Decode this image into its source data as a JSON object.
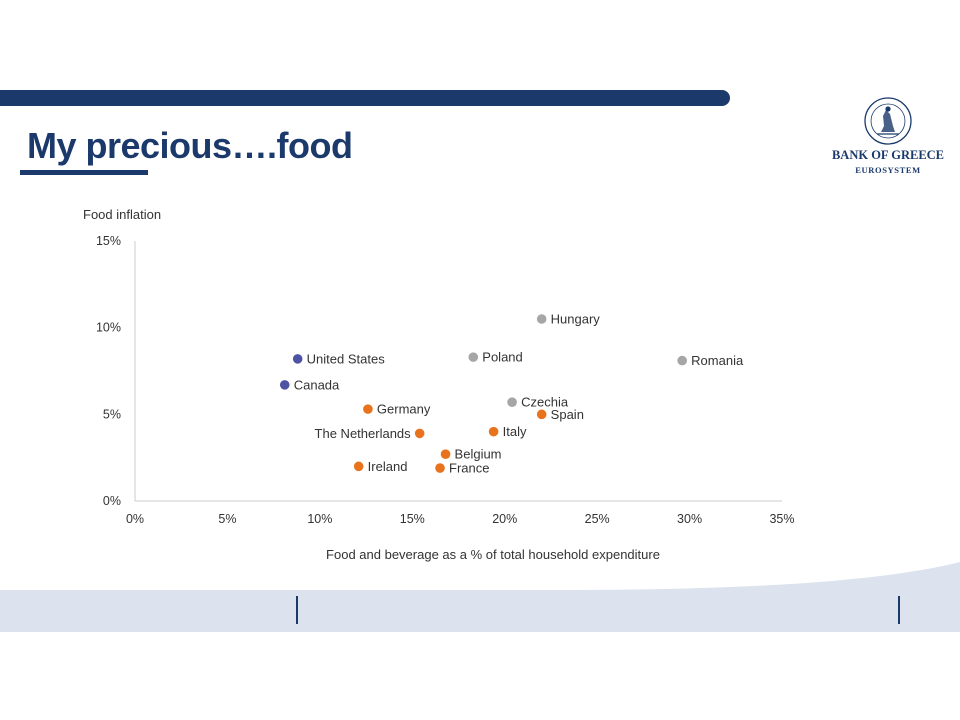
{
  "header": {
    "title": "My precious….food"
  },
  "logo": {
    "name": "BANK OF GREECE",
    "subtitle": "EUROSYSTEM"
  },
  "colors": {
    "brand": "#1b3a6b",
    "north_america": "#4e52a3",
    "euro_area": "#e8731c",
    "other": "#a6a6a6"
  },
  "chart_data": {
    "type": "scatter",
    "title": "",
    "ylabel": "Food inflation",
    "xlabel": "Food and beverage as a % of total household expenditure",
    "xlim": [
      0,
      35
    ],
    "ylim": [
      0,
      15
    ],
    "x_ticks": [
      {
        "value": 0,
        "label": "0%"
      },
      {
        "value": 5,
        "label": "5%"
      },
      {
        "value": 10,
        "label": "10%"
      },
      {
        "value": 15,
        "label": "15%"
      },
      {
        "value": 20,
        "label": "20%"
      },
      {
        "value": 25,
        "label": "25%"
      },
      {
        "value": 30,
        "label": "30%"
      },
      {
        "value": 35,
        "label": "35%"
      }
    ],
    "y_ticks": [
      {
        "value": 0,
        "label": "0%"
      },
      {
        "value": 5,
        "label": "5%"
      },
      {
        "value": 10,
        "label": "10%"
      },
      {
        "value": 15,
        "label": "15%"
      }
    ],
    "grid": false,
    "legend": "none",
    "points": [
      {
        "label": "United States",
        "x": 8.8,
        "y": 8.2,
        "group": "north_america"
      },
      {
        "label": "Canada",
        "x": 8.1,
        "y": 6.7,
        "group": "north_america"
      },
      {
        "label": "Germany",
        "x": 12.6,
        "y": 5.3,
        "group": "euro_area"
      },
      {
        "label": "The Netherlands",
        "x": 15.4,
        "y": 3.9,
        "group": "euro_area"
      },
      {
        "label": "Ireland",
        "x": 12.1,
        "y": 2.0,
        "group": "euro_area"
      },
      {
        "label": "Belgium",
        "x": 16.8,
        "y": 2.7,
        "group": "euro_area"
      },
      {
        "label": "France",
        "x": 16.5,
        "y": 1.9,
        "group": "euro_area"
      },
      {
        "label": "Italy",
        "x": 19.4,
        "y": 4.0,
        "group": "euro_area"
      },
      {
        "label": "Spain",
        "x": 22.0,
        "y": 5.0,
        "group": "euro_area"
      },
      {
        "label": "Hungary",
        "x": 22.0,
        "y": 10.5,
        "group": "other"
      },
      {
        "label": "Poland",
        "x": 18.3,
        "y": 8.3,
        "group": "other"
      },
      {
        "label": "Czechia",
        "x": 20.4,
        "y": 5.7,
        "group": "other"
      },
      {
        "label": "Romania",
        "x": 29.6,
        "y": 8.1,
        "group": "other"
      }
    ]
  }
}
